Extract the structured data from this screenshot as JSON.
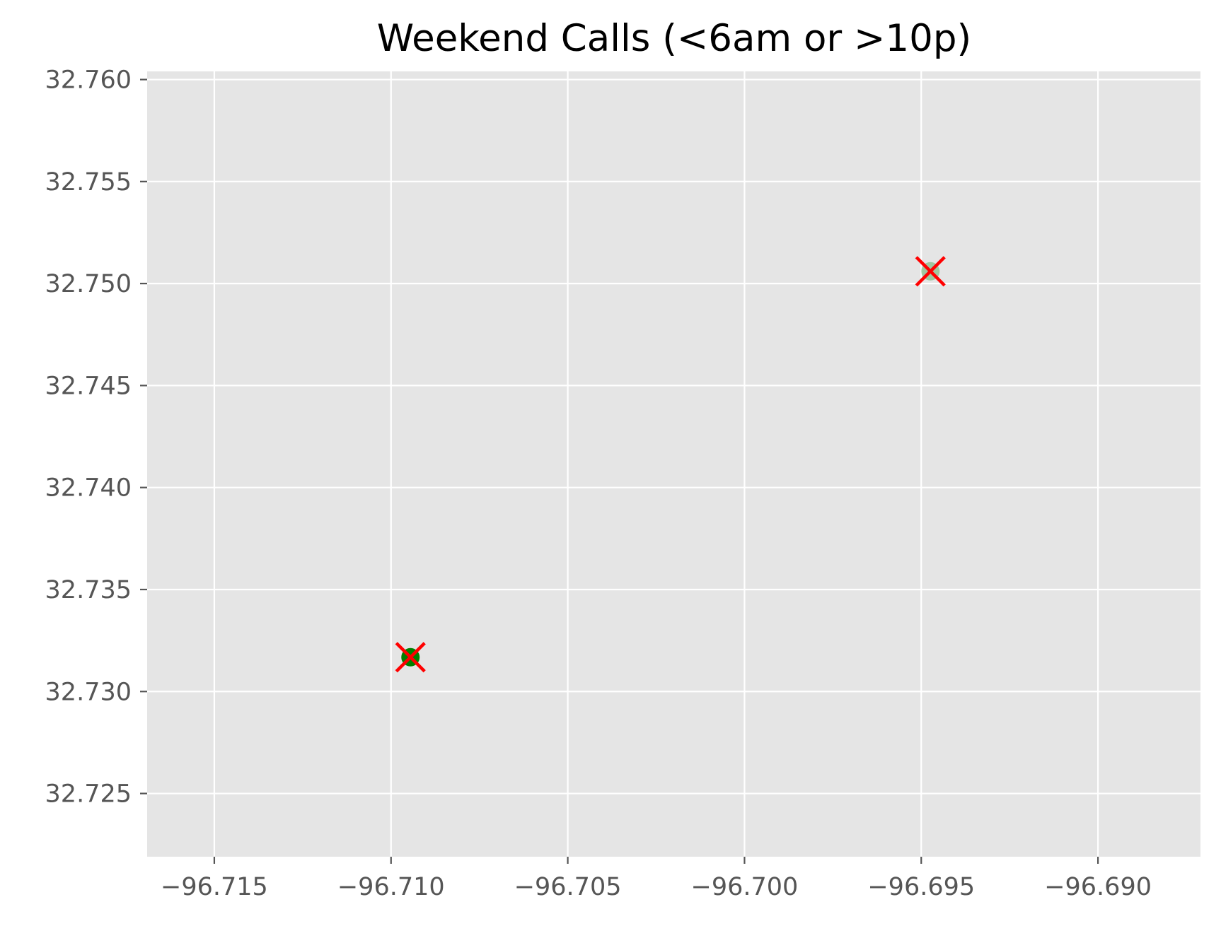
{
  "chart_data": {
    "type": "scatter",
    "title": "Weekend Calls (<6am or >10p)",
    "xlabel": "",
    "ylabel": "",
    "xlim": [
      -96.7169,
      -96.6871
    ],
    "ylim": [
      32.7219,
      32.7604
    ],
    "x_ticks": [
      -96.715,
      -96.71,
      -96.705,
      -96.7,
      -96.695,
      -96.69
    ],
    "x_tick_labels": [
      "−96.715",
      "−96.710",
      "−96.705",
      "−96.700",
      "−96.695",
      "−96.690"
    ],
    "y_ticks": [
      32.725,
      32.73,
      32.735,
      32.74,
      32.745,
      32.75,
      32.755,
      32.76
    ],
    "y_tick_labels": [
      "32.725",
      "32.730",
      "32.735",
      "32.740",
      "32.745",
      "32.750",
      "32.755",
      "32.760"
    ],
    "grid": true,
    "background": "#e5e5e5",
    "series": [
      {
        "marker": "circle",
        "color": "#008000",
        "points": [
          {
            "x": -96.70945,
            "y": 32.73168,
            "alpha": 1.0
          },
          {
            "x": -96.69474,
            "y": 32.7506,
            "alpha": 0.3
          }
        ]
      },
      {
        "marker": "x",
        "color": "#ff0000",
        "points": [
          {
            "x": -96.70945,
            "y": 32.73168
          },
          {
            "x": -96.69474,
            "y": 32.7506
          }
        ]
      }
    ]
  }
}
